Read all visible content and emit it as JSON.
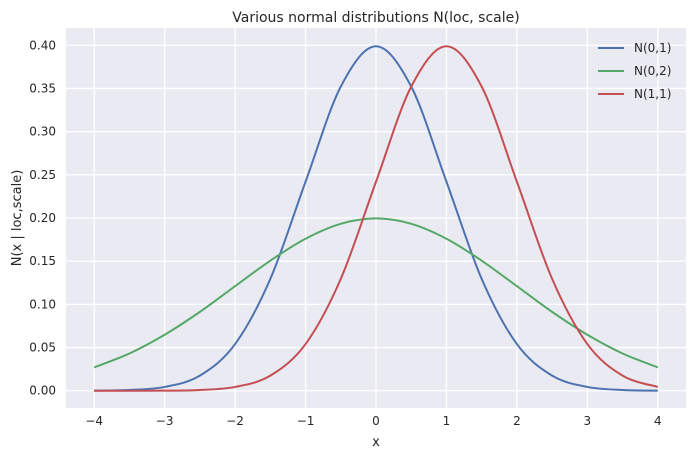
{
  "chart_data": {
    "type": "line",
    "title": "Various normal distributions N(loc, scale)",
    "xlabel": "x",
    "ylabel": "N(x | loc,scale)",
    "xlim": [
      -4,
      4
    ],
    "ylim": [
      -0.02,
      0.42
    ],
    "x_ticks": [
      -4,
      -3,
      -2,
      -1,
      0,
      1,
      2,
      3,
      4
    ],
    "x_tick_labels": [
      "−4",
      "−3",
      "−2",
      "−1",
      "0",
      "1",
      "2",
      "3",
      "4"
    ],
    "y_ticks": [
      0.0,
      0.05,
      0.1,
      0.15,
      0.2,
      0.25,
      0.3,
      0.35,
      0.4
    ],
    "y_tick_labels": [
      "0.00",
      "0.05",
      "0.10",
      "0.15",
      "0.20",
      "0.25",
      "0.30",
      "0.35",
      "0.40"
    ],
    "grid": true,
    "background": "#eaeaf2",
    "legend_position": "top-right",
    "x": [
      -4,
      -3.5,
      -3,
      -2.5,
      -2,
      -1.5,
      -1,
      -0.5,
      0,
      0.5,
      1,
      1.5,
      2,
      2.5,
      3,
      3.5,
      4
    ],
    "series": [
      {
        "name": "N(0,1)",
        "color": "#4c72b0",
        "values": [
          0.0001,
          0.0009,
          0.0044,
          0.0175,
          0.054,
          0.1295,
          0.242,
          0.3521,
          0.3989,
          0.3521,
          0.242,
          0.1295,
          0.054,
          0.0175,
          0.0044,
          0.0009,
          0.0001
        ]
      },
      {
        "name": "N(0,2)",
        "color": "#55a868",
        "values": [
          0.027,
          0.0431,
          0.0648,
          0.0913,
          0.121,
          0.1506,
          0.176,
          0.1933,
          0.1995,
          0.1933,
          0.176,
          0.1506,
          0.121,
          0.0913,
          0.0648,
          0.0431,
          0.027
        ]
      },
      {
        "name": "N(1,1)",
        "color": "#c44e52",
        "values": [
          0.0,
          0.0,
          0.0001,
          0.0009,
          0.0044,
          0.0175,
          0.054,
          0.1295,
          0.242,
          0.3521,
          0.3989,
          0.3521,
          0.242,
          0.1295,
          0.054,
          0.0175,
          0.0044
        ]
      }
    ]
  }
}
